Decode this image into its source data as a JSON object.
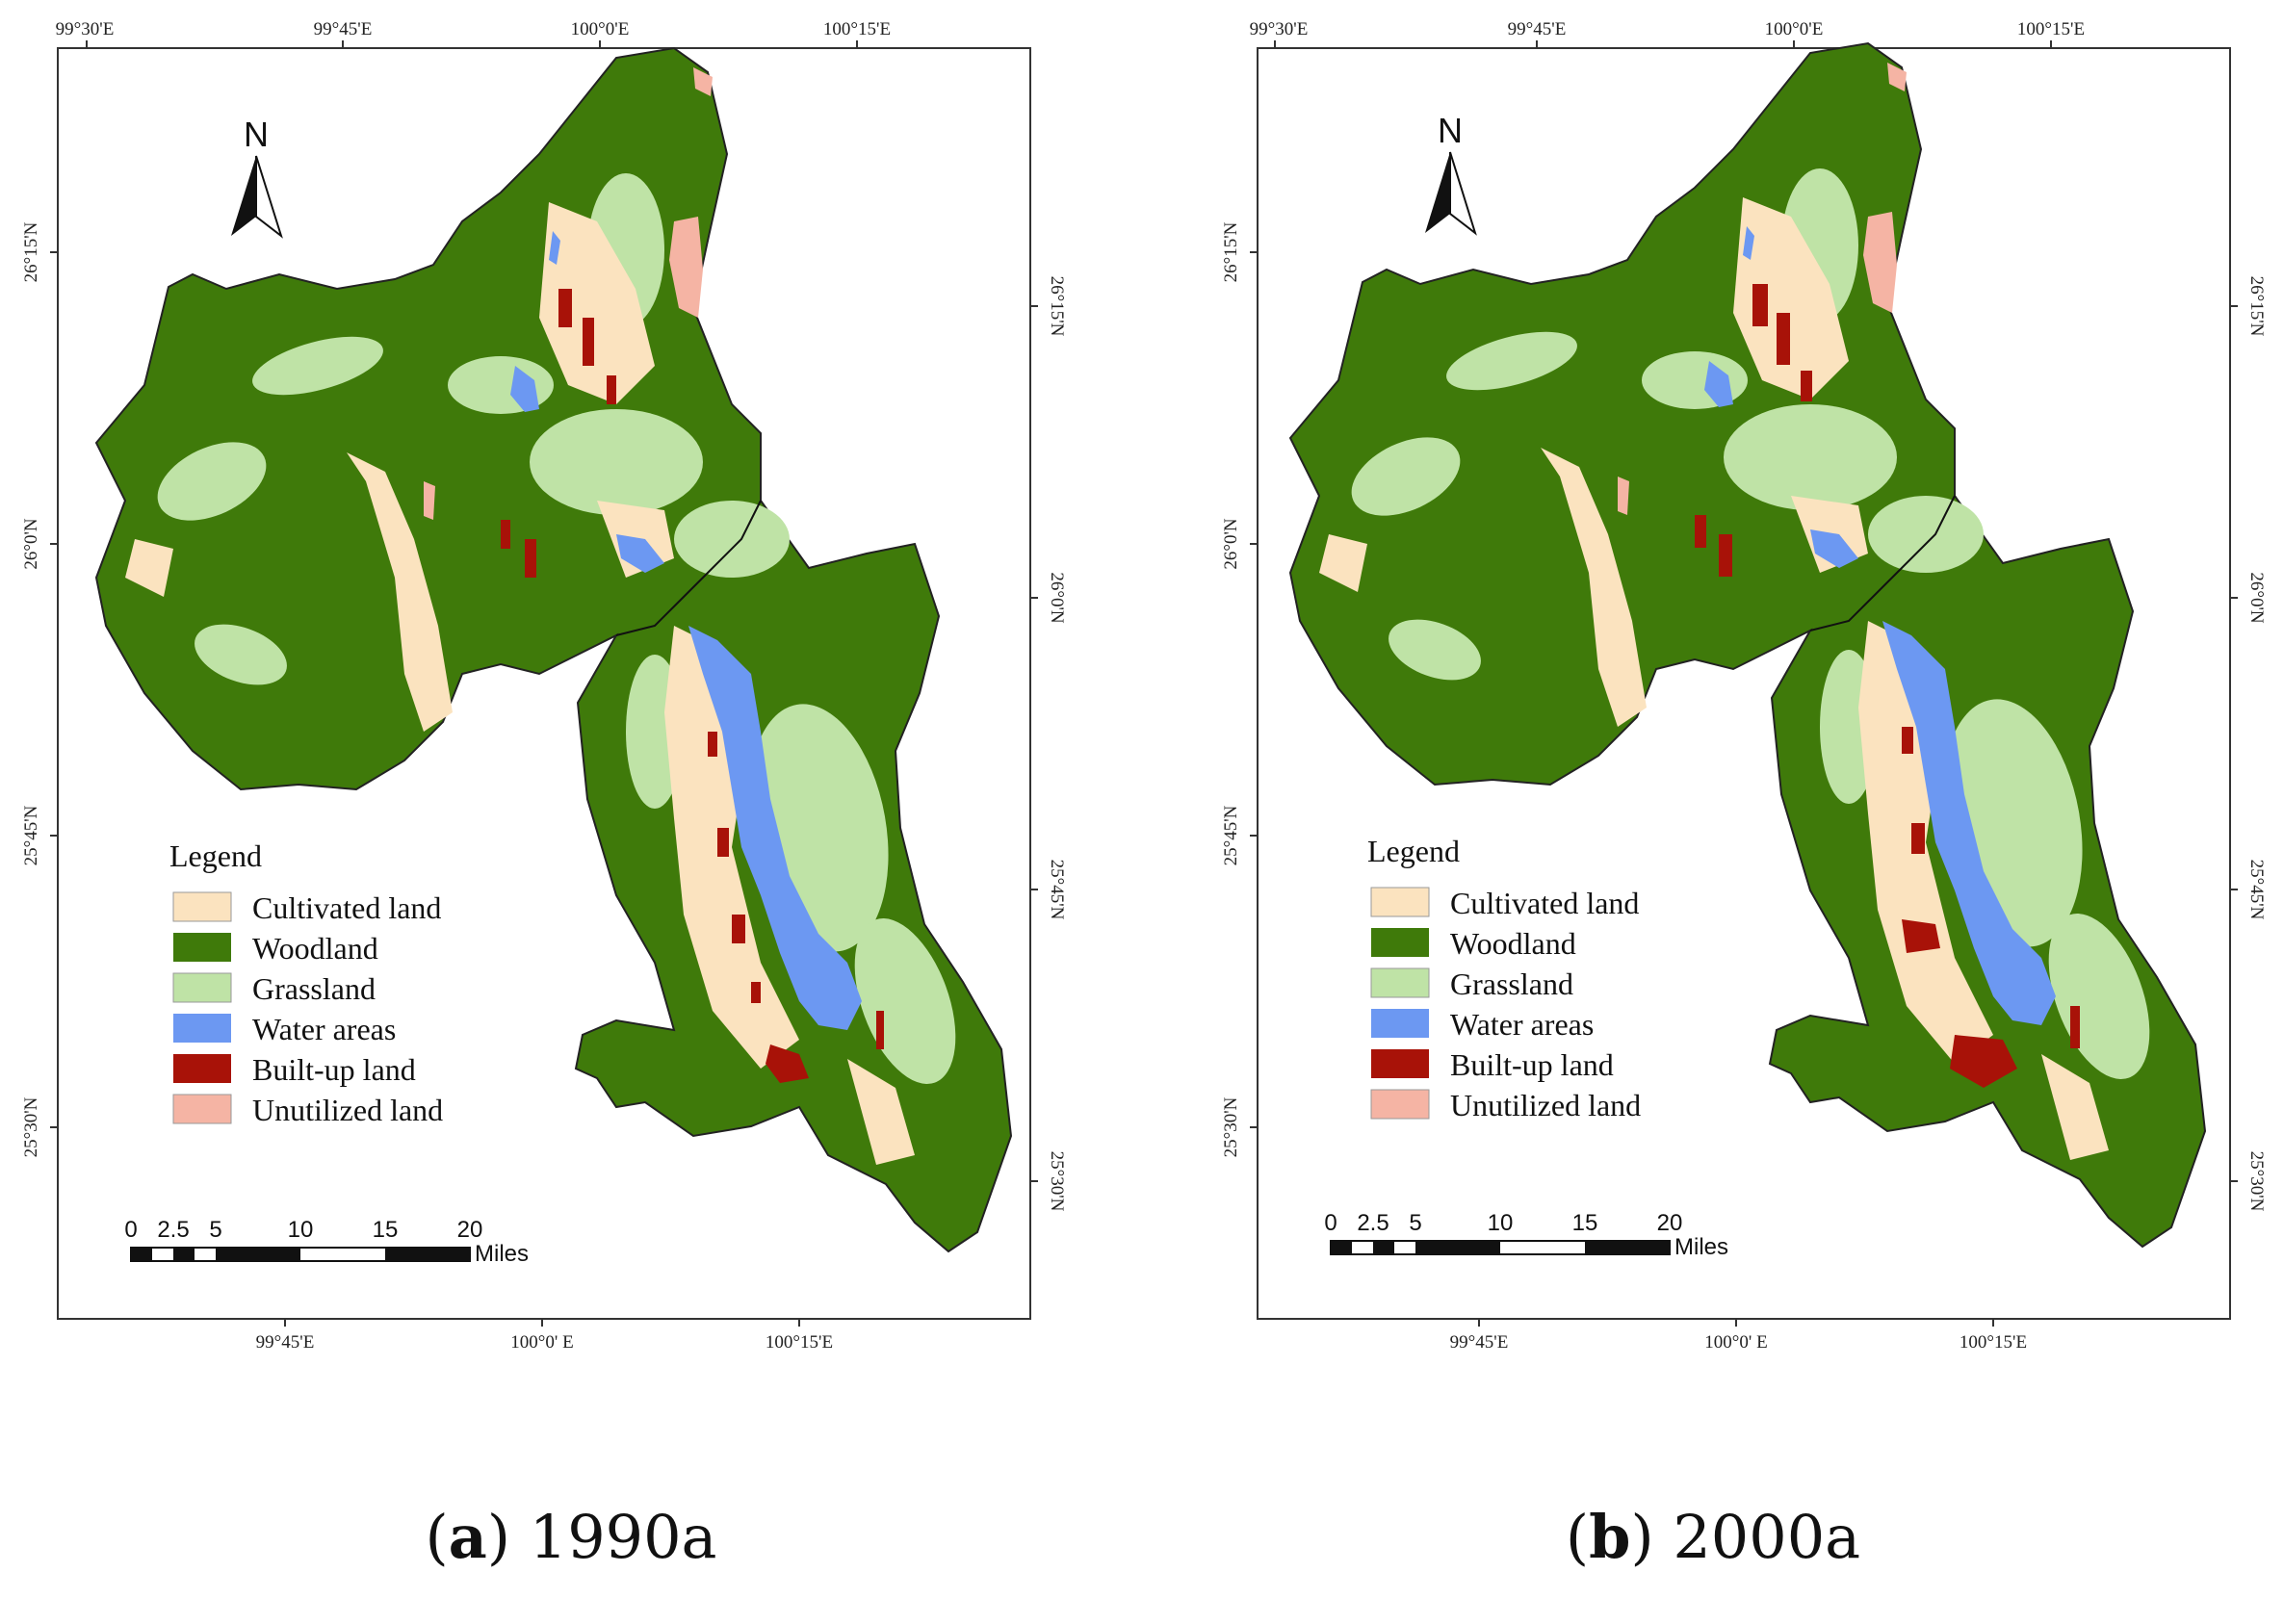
{
  "panels": [
    {
      "id": "a",
      "caption_letter": "a",
      "caption_year": "1990a",
      "top_ticks": [
        "99°30'E",
        "99°45'E",
        "100°0'E",
        "100°15'E"
      ],
      "bottom_ticks": [
        "99°45'E",
        "100°0' E",
        "100°15'E"
      ],
      "left_ticks": [
        "26°15'N",
        "26°0'N",
        "25°45'N",
        "25°30'N"
      ],
      "right_ticks": [
        "26°15'N",
        "26°0'N",
        "25°45'N",
        "25°30'N"
      ],
      "north_label": "N",
      "legend_title": "Legend",
      "scale_labels": [
        "0",
        "2.5",
        "5",
        "10",
        "15",
        "20"
      ],
      "scale_unit": "Miles"
    },
    {
      "id": "b",
      "caption_letter": "b",
      "caption_year": "2000a",
      "top_ticks": [
        "99°30'E",
        "99°45'E",
        "100°0'E",
        "100°15'E"
      ],
      "bottom_ticks": [
        "99°45'E",
        "100°0' E",
        "100°15'E"
      ],
      "left_ticks": [
        "26°15'N",
        "26°0'N",
        "25°45'N",
        "25°30'N"
      ],
      "right_ticks": [
        "26°15'N",
        "26°0'N",
        "25°45'N",
        "25°30'N"
      ],
      "north_label": "N",
      "legend_title": "Legend",
      "scale_labels": [
        "0",
        "2.5",
        "5",
        "10",
        "15",
        "20"
      ],
      "scale_unit": "Miles"
    }
  ],
  "legend_items": [
    {
      "label": "Cultivated land",
      "color": "#fbe3bf"
    },
    {
      "label": "Woodland",
      "color": "#3f7a0a"
    },
    {
      "label": "Grassland",
      "color": "#bfe3a6"
    },
    {
      "label": "Water areas",
      "color": "#6c98f2"
    },
    {
      "label": "Built-up land",
      "color": "#a81208"
    },
    {
      "label": "Unutilized land",
      "color": "#f5b4a4"
    }
  ]
}
